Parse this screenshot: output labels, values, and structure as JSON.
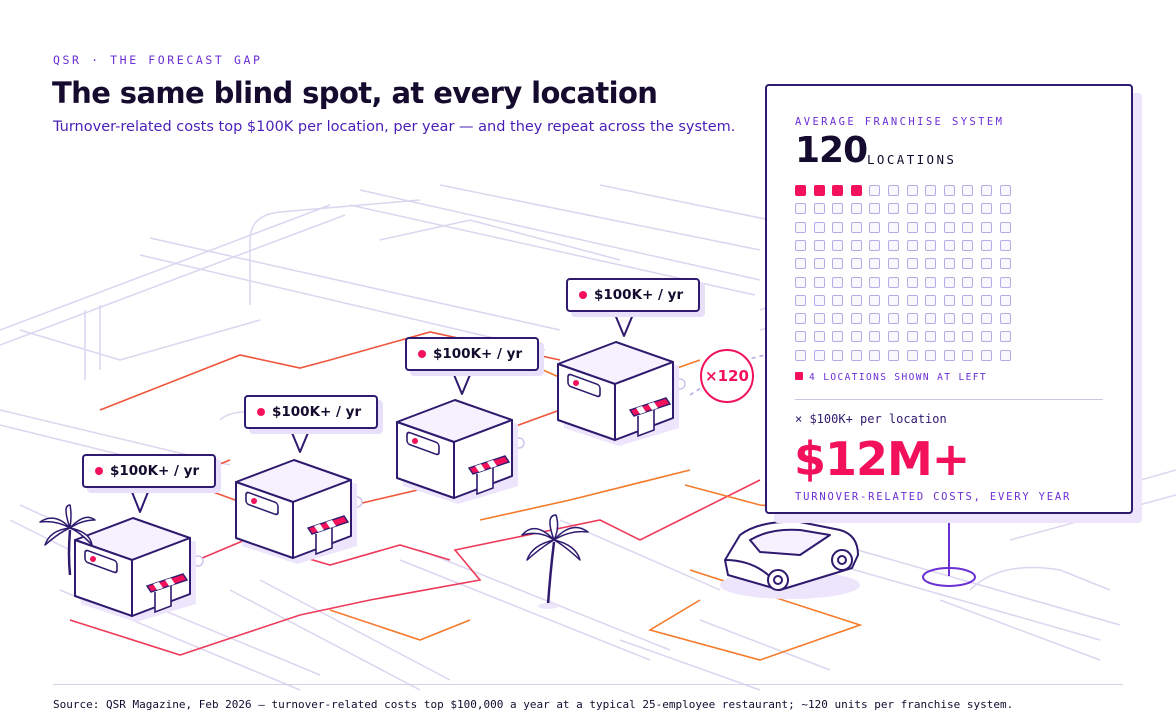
{
  "header": {
    "kicker": "QSR · THE FORECAST GAP",
    "title": "The same blind spot, at every location",
    "subtitle": "Turnover-related costs top $100K per location, per year — and they repeat across the system."
  },
  "callouts": [
    {
      "label": "$100K+ / yr"
    },
    {
      "label": "$100K+ / yr"
    },
    {
      "label": "$100K+ / yr"
    },
    {
      "label": "$100K+ / yr"
    }
  ],
  "multiplier": "×120",
  "panel": {
    "kicker": "AVERAGE FRANCHISE SYSTEM",
    "count": "120",
    "count_unit": "LOCATIONS",
    "grid": {
      "total": 120,
      "highlighted": 4
    },
    "legend": "4 LOCATIONS SHOWN AT LEFT",
    "per_location": "× $100K+ per location",
    "total": "$12M+",
    "total_note": "TURNOVER-RELATED COSTS, EVERY YEAR"
  },
  "footer": {
    "source": "Source: QSR Magazine, Feb 2026 — turnover-related costs top $100,000 a year at a typical 25-employee restaurant; ~120 units per franchise system."
  },
  "colors": {
    "accent": "#f2115a",
    "ink": "#140b2e",
    "violet": "#6b2fd6",
    "route_orange": "#f57a2a",
    "street": "#d9d2ee"
  }
}
